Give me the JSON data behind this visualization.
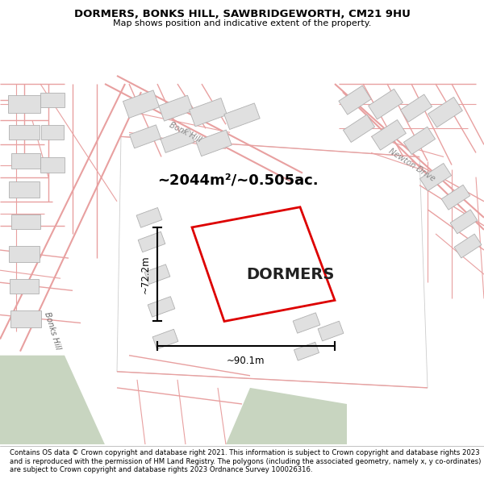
{
  "title_line1": "DORMERS, BONKS HILL, SAWBRIDGEWORTH, CM21 9HU",
  "title_line2": "Map shows position and indicative extent of the property.",
  "property_label": "DORMERS",
  "area_text": "~2044m²/~0.505ac.",
  "dim_horizontal": "~90.1m",
  "dim_vertical": "~72.2m",
  "road_label_bonks_hill": "Bonks Hill",
  "road_label_bonk_hill": "Bonk Hill",
  "road_label_newton": "Newton Drive",
  "footer_text": "Contains OS data © Crown copyright and database right 2021. This information is subject to Crown copyright and database rights 2023 and is reproduced with the permission of HM Land Registry. The polygons (including the associated geometry, namely x, y co-ordinates) are subject to Crown copyright and database rights 2023 Ordnance Survey 100026316.",
  "map_bg": "#f0eeea",
  "road_color": "#e8a0a0",
  "road_lw": 1.0,
  "building_fill": "#e0e0e0",
  "building_edge": "#b0b0b0",
  "property_color": "#dd0000",
  "dim_color": "#000000",
  "green_color": "#c8d5c0",
  "title_color": "#000000",
  "footer_color": "#000000",
  "white_plot": "#ffffff"
}
